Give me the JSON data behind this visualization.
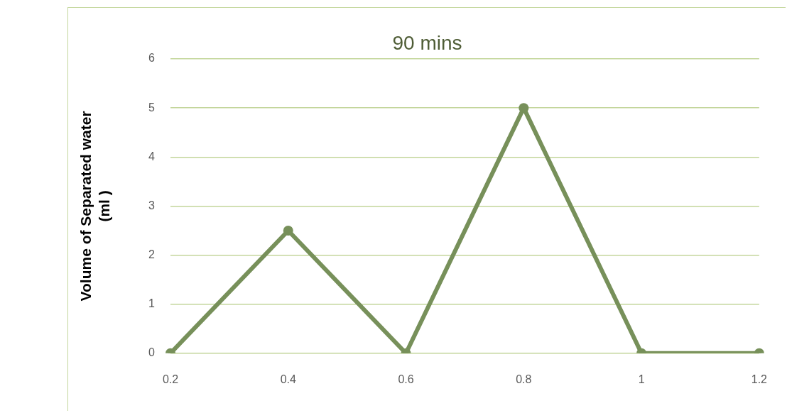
{
  "chart_data": {
    "type": "line",
    "title": "90 mins",
    "ylabel": "Volume of Separated water\n(ml )",
    "categories": [
      "0.2",
      "0.4",
      "0.6",
      "0.8",
      "1",
      "1.2"
    ],
    "series": [
      {
        "color": "#77905a",
        "values": [
          0,
          2.5,
          0,
          5,
          0,
          0
        ]
      }
    ],
    "ylim": [
      0,
      6
    ],
    "yticks": [
      0,
      1,
      2,
      3,
      4,
      5,
      6
    ],
    "grid": "y",
    "legend": false,
    "marker": "circle",
    "line_style": "solid"
  }
}
